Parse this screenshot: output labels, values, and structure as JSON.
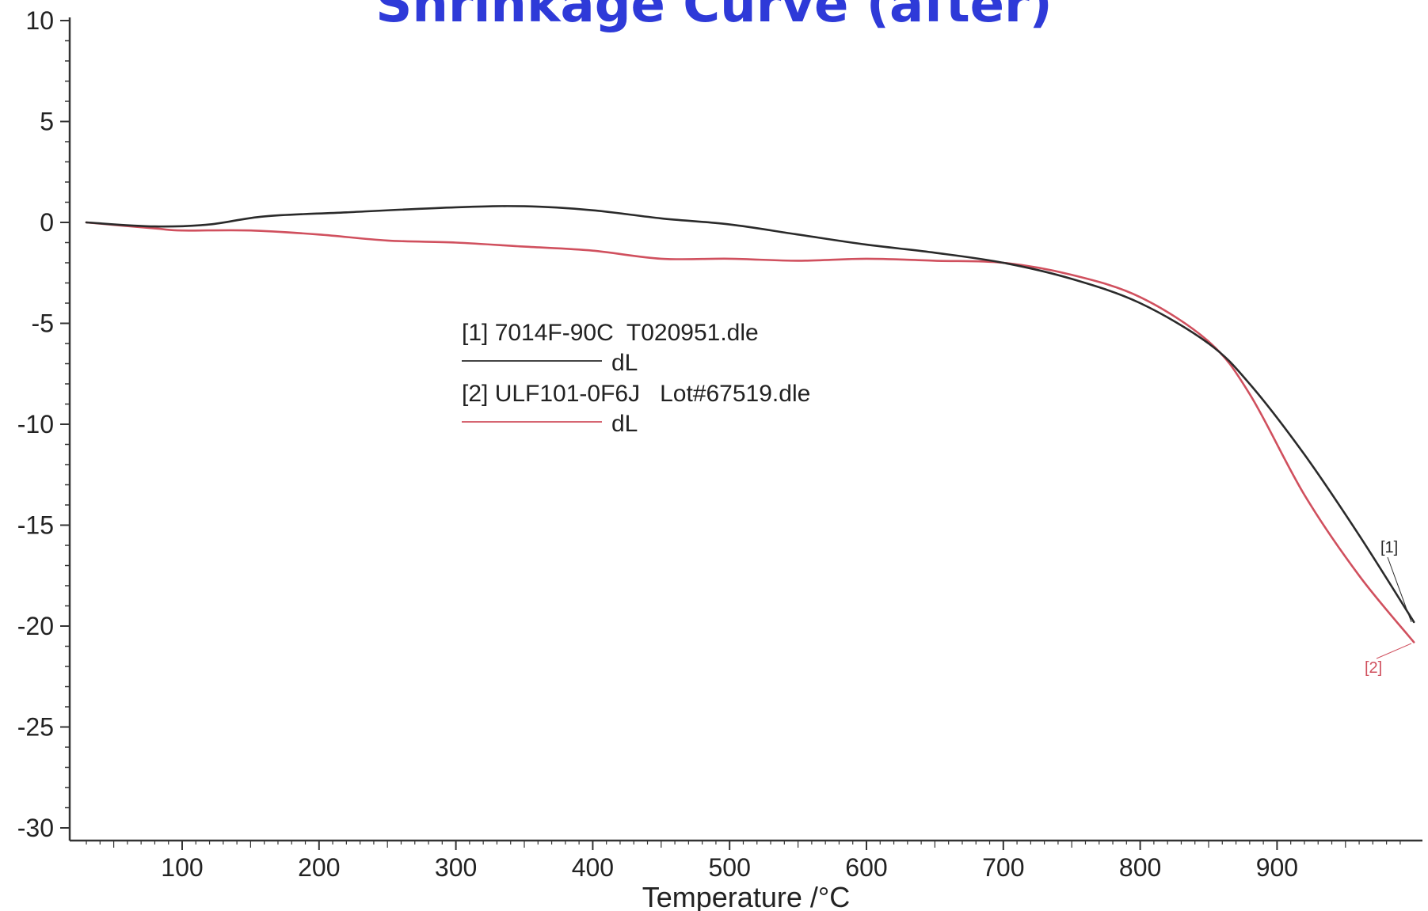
{
  "page_title": "Shrinkage Curve (after)",
  "colors": {
    "title": "#2e3ad8",
    "series_1": "#2a2a2a",
    "series_2": "#d0505e",
    "axis": "#333333"
  },
  "chart_data": {
    "type": "line",
    "title": "Shrinkage Curve (after)",
    "xlabel": "Temperature /°C",
    "ylabel": "",
    "xlim": [
      20,
      1000
    ],
    "ylim": [
      -30,
      10
    ],
    "x_ticks": [
      100,
      200,
      300,
      400,
      500,
      600,
      700,
      800,
      900
    ],
    "y_ticks": [
      10,
      5,
      0,
      -5,
      -10,
      -15,
      -20,
      -25,
      -30
    ],
    "grid": false,
    "legend": {
      "placement": "center-left",
      "entries": [
        {
          "title": "[1] 7014F-90C  T020951.dle",
          "label": "dL"
        },
        {
          "title": "[2] ULF101-0F6J   Lot#67519.dle",
          "label": "dL"
        }
      ]
    },
    "series": [
      {
        "tag": "[1]",
        "color": "#2a2a2a",
        "points": [
          [
            30,
            0.0
          ],
          [
            80,
            -0.2
          ],
          [
            120,
            -0.1
          ],
          [
            160,
            0.3
          ],
          [
            220,
            0.5
          ],
          [
            300,
            0.75
          ],
          [
            350,
            0.8
          ],
          [
            400,
            0.6
          ],
          [
            450,
            0.2
          ],
          [
            500,
            -0.1
          ],
          [
            550,
            -0.6
          ],
          [
            600,
            -1.1
          ],
          [
            650,
            -1.5
          ],
          [
            700,
            -2.0
          ],
          [
            750,
            -2.8
          ],
          [
            800,
            -4.0
          ],
          [
            850,
            -6.0
          ],
          [
            880,
            -8.0
          ],
          [
            920,
            -11.5
          ],
          [
            960,
            -15.5
          ],
          [
            1000,
            -19.8
          ]
        ]
      },
      {
        "tag": "[2]",
        "color": "#d0505e",
        "points": [
          [
            30,
            0.0
          ],
          [
            80,
            -0.3
          ],
          [
            100,
            -0.4
          ],
          [
            150,
            -0.4
          ],
          [
            200,
            -0.6
          ],
          [
            250,
            -0.9
          ],
          [
            300,
            -1.0
          ],
          [
            350,
            -1.2
          ],
          [
            400,
            -1.4
          ],
          [
            450,
            -1.8
          ],
          [
            500,
            -1.8
          ],
          [
            550,
            -1.9
          ],
          [
            600,
            -1.8
          ],
          [
            650,
            -1.9
          ],
          [
            700,
            -2.0
          ],
          [
            750,
            -2.6
          ],
          [
            800,
            -3.7
          ],
          [
            850,
            -5.9
          ],
          [
            880,
            -8.5
          ],
          [
            920,
            -13.5
          ],
          [
            960,
            -17.5
          ],
          [
            1000,
            -20.8
          ]
        ]
      }
    ]
  }
}
